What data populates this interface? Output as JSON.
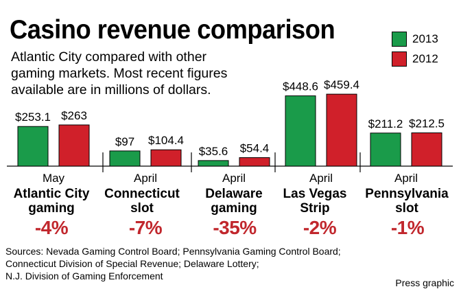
{
  "title": "Casino revenue comparison",
  "subtitle_lines": [
    "Atlantic City compared with other",
    "gaming markets. Most recent figures",
    "available are in millions of dollars."
  ],
  "legend": [
    {
      "label": "2013",
      "color": "#1a9b4a"
    },
    {
      "label": "2012",
      "color": "#d0202a"
    }
  ],
  "chart_data": {
    "type": "bar",
    "title": "Casino revenue comparison",
    "unit": "millions of dollars",
    "categories": [
      {
        "month": "May",
        "name_lines": [
          "Atlantic City",
          "gaming"
        ],
        "change": "-4%"
      },
      {
        "month": "April",
        "name_lines": [
          "Connecticut",
          "slot"
        ],
        "change": "-7%"
      },
      {
        "month": "April",
        "name_lines": [
          "Delaware",
          "gaming"
        ],
        "change": "-35%"
      },
      {
        "month": "April",
        "name_lines": [
          "Las Vegas",
          "Strip"
        ],
        "change": "-2%"
      },
      {
        "month": "April",
        "name_lines": [
          "Pennsylvania",
          "slot"
        ],
        "change": "-1%"
      }
    ],
    "series": [
      {
        "name": "2013",
        "color": "#1a9b4a",
        "values": [
          253.1,
          97,
          35.6,
          448.6,
          211.2
        ],
        "labels": [
          "$253.1",
          "$97",
          "$35.6",
          "$448.6",
          "$211.2"
        ]
      },
      {
        "name": "2012",
        "color": "#d0202a",
        "values": [
          263,
          104.4,
          54.4,
          459.4,
          212.5
        ],
        "labels": [
          "$263",
          "$104.4",
          "$54.4",
          "$459.4",
          "$212.5"
        ]
      }
    ],
    "ylim": [
      0,
      460
    ]
  },
  "sources": [
    "Sources: Nevada Gaming Control Board; Pennsylvania Gaming Control Board;",
    "Connecticut Division of Special Revenue; Delaware Lottery;",
    "N.J. Division of Gaming Enforcement"
  ],
  "credit": "Press graphic"
}
